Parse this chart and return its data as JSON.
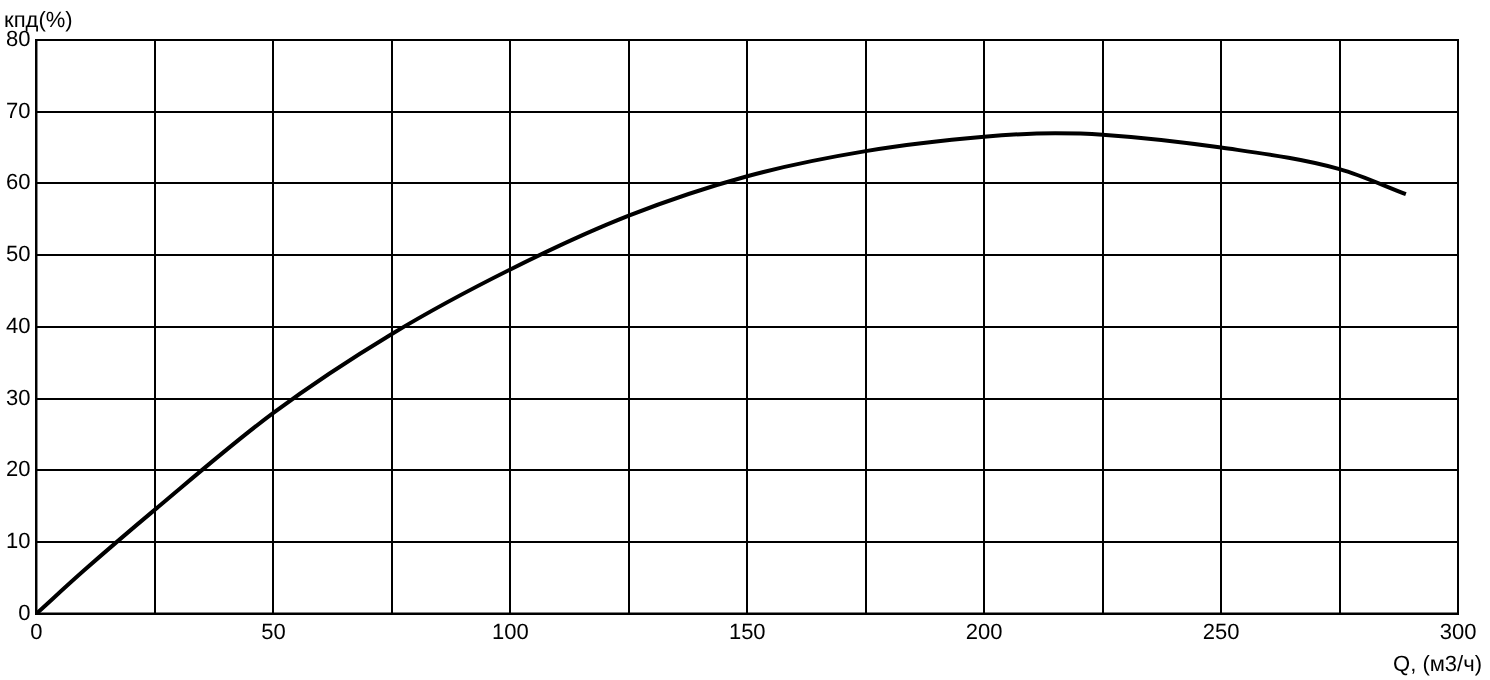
{
  "chart_data": {
    "type": "line",
    "xlabel": "Q, (м3/ч)",
    "ylabel": "кпд(%)",
    "x": [
      0,
      10,
      25,
      50,
      75,
      100,
      125,
      150,
      175,
      200,
      215,
      225,
      250,
      275,
      289
    ],
    "series": [
      {
        "color": "#000000",
        "values": [
          0,
          6,
          14.5,
          28,
          39,
          48,
          55.5,
          61,
          64.5,
          66.5,
          67,
          66.8,
          65,
          62,
          58.5
        ]
      }
    ],
    "xlim": [
      0,
      300
    ],
    "xticks": [
      0,
      {
        "value": 25,
        "label": null
      },
      50,
      {
        "value": 75,
        "label": null
      },
      100,
      {
        "value": 125,
        "label": null
      },
      150,
      {
        "value": 175,
        "label": null
      },
      200,
      {
        "value": 225,
        "label": null
      },
      250,
      {
        "value": 275,
        "label": null
      },
      300
    ],
    "ylim": [
      0,
      80
    ],
    "yticks": [
      0,
      10,
      20,
      30,
      40,
      50,
      60,
      70,
      80
    ],
    "grid": true,
    "marker": "none",
    "line_style": "solid",
    "legend": false
  }
}
